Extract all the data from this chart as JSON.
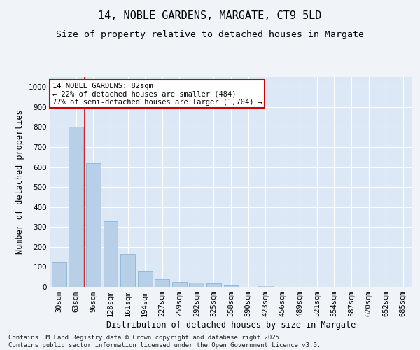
{
  "title": "14, NOBLE GARDENS, MARGATE, CT9 5LD",
  "subtitle": "Size of property relative to detached houses in Margate",
  "xlabel": "Distribution of detached houses by size in Margate",
  "ylabel": "Number of detached properties",
  "footer_line1": "Contains HM Land Registry data © Crown copyright and database right 2025.",
  "footer_line2": "Contains public sector information licensed under the Open Government Licence v3.0.",
  "categories": [
    "30sqm",
    "63sqm",
    "96sqm",
    "128sqm",
    "161sqm",
    "194sqm",
    "227sqm",
    "259sqm",
    "292sqm",
    "325sqm",
    "358sqm",
    "390sqm",
    "423sqm",
    "456sqm",
    "489sqm",
    "521sqm",
    "554sqm",
    "587sqm",
    "620sqm",
    "652sqm",
    "685sqm"
  ],
  "values": [
    122,
    800,
    620,
    330,
    165,
    80,
    38,
    25,
    22,
    16,
    12,
    0,
    7,
    0,
    0,
    0,
    0,
    0,
    0,
    0,
    0
  ],
  "bar_color": "#b8cfe8",
  "bar_edgecolor": "#7aafd4",
  "background_color": "#dce8f5",
  "plot_bg_color": "#dce8f5",
  "grid_color": "#ffffff",
  "fig_bg_color": "#f0f4f8",
  "annotation_box_text": "14 NOBLE GARDENS: 82sqm\n← 22% of detached houses are smaller (484)\n77% of semi-detached houses are larger (1,704) →",
  "annotation_box_facecolor": "#ffffff",
  "annotation_box_edgecolor": "#cc0000",
  "vline_color": "#cc0000",
  "vline_x": 1.5,
  "ylim": [
    0,
    1050
  ],
  "yticks": [
    0,
    100,
    200,
    300,
    400,
    500,
    600,
    700,
    800,
    900,
    1000
  ],
  "title_fontsize": 11,
  "subtitle_fontsize": 9.5,
  "label_fontsize": 8.5,
  "tick_fontsize": 7.5,
  "annotation_fontsize": 7.5,
  "footer_fontsize": 6.5
}
